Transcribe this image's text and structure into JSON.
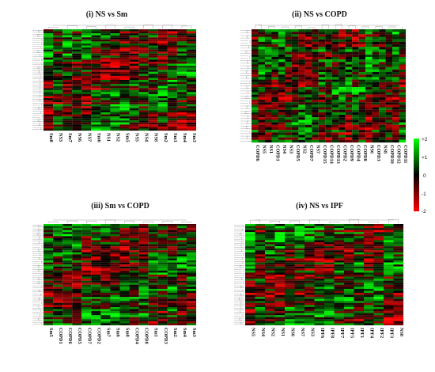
{
  "chart_data": [
    {
      "type": "heatmap",
      "title": "(i) NS vs Sm",
      "columns": [
        "Sm8",
        "NS3",
        "Sm7",
        "NS6",
        "NS7",
        "Sm6",
        "NS1",
        "NS2",
        "Sm5",
        "NS5",
        "NS4",
        "NS8",
        "Sm2",
        "Sm1",
        "Sm4",
        "Sm3"
      ],
      "n_rows": 50,
      "color_scale": {
        "min": -2,
        "max": 2,
        "low_color": "#ff0000",
        "mid_color": "#000000",
        "high_color": "#00ff00"
      }
    },
    {
      "type": "heatmap",
      "title": "(ii) NS vs COPD",
      "columns": [
        "COPD6",
        "NS5",
        "NS1",
        "COPD1",
        "NS4",
        "NS3",
        "COPD5",
        "NS2",
        "COPD7",
        "NS7",
        "COPD15",
        "COPD14",
        "COPD13",
        "COPD2",
        "COPD9",
        "COPD4",
        "COPD8",
        "NS6",
        "COPD3",
        "NS8",
        "COPD10",
        "COPD12",
        "COPD11"
      ],
      "n_rows": 45,
      "color_scale": {
        "min": -2,
        "max": 2,
        "low_color": "#ff0000",
        "mid_color": "#000000",
        "high_color": "#00ff00"
      }
    },
    {
      "type": "heatmap",
      "title": "(iii) Sm vs COPD",
      "columns": [
        "Sm5",
        "COPD1",
        "COPD6",
        "COPD5",
        "COPD7",
        "COPD2",
        "Sm7",
        "Sm6",
        "Sm8",
        "COPD4",
        "COPD8",
        "Sm1",
        "COPD3",
        "Sm2",
        "Sm4",
        "Sm3"
      ],
      "n_rows": 50,
      "color_scale": {
        "min": -2,
        "max": 2,
        "low_color": "#ff0000",
        "mid_color": "#000000",
        "high_color": "#00ff00"
      }
    },
    {
      "type": "heatmap",
      "title": "(iv) NS vs IPF",
      "columns": [
        "NS5",
        "NS4",
        "NS2",
        "NS1",
        "NS6",
        "NS7",
        "NS3",
        "IPF6",
        "IPF8",
        "IPF7",
        "IPF5",
        "IPF1",
        "IPF4",
        "IPF2",
        "IPF3",
        "NS8"
      ],
      "n_rows": 50,
      "color_scale": {
        "min": -2,
        "max": 2,
        "low_color": "#ff0000",
        "mid_color": "#000000",
        "high_color": "#00ff00"
      }
    }
  ],
  "legend": {
    "tick_labels": [
      "+2",
      "+1",
      "0",
      "-1",
      "-2"
    ]
  }
}
